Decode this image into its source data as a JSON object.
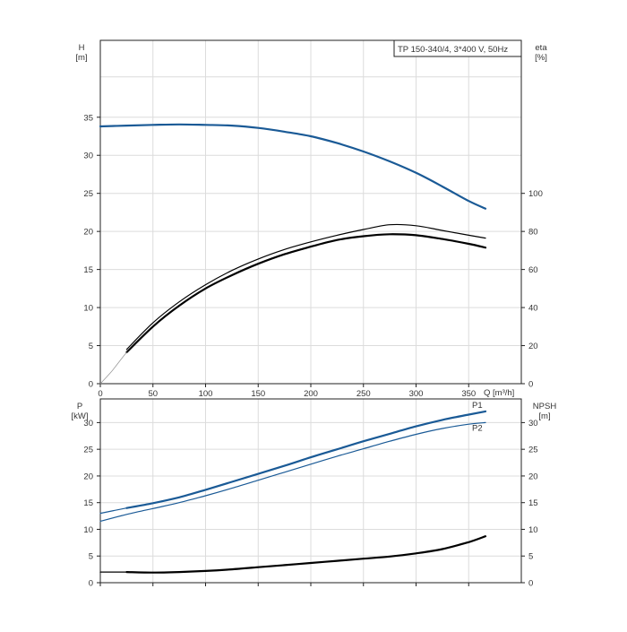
{
  "chart_data": [
    {
      "type": "line",
      "panel": "head-efficiency",
      "title": "TP 150-340/4, 3*400 V, 50Hz",
      "xlabel": "Q [m³/h]",
      "ylabel": "H\n[m]",
      "y2label": "eta\n[%]",
      "xlim": [
        0,
        400
      ],
      "ylim": [
        0,
        40
      ],
      "y2lim": [
        0,
        160
      ],
      "x_ticks": [
        "0",
        "50",
        "100",
        "150",
        "200",
        "250",
        "300",
        "350"
      ],
      "y_ticks": [
        "0",
        "5",
        "10",
        "15",
        "20",
        "25",
        "30",
        "35"
      ],
      "y2_ticks": [
        "0",
        "20",
        "40",
        "60",
        "80",
        "100"
      ],
      "grid": true,
      "series": [
        {
          "key": "H",
          "axis": "left",
          "color": "#1a5a96",
          "width": 2.2,
          "x": [
            0,
            25,
            50,
            75,
            100,
            125,
            150,
            175,
            200,
            225,
            250,
            275,
            300,
            325,
            350,
            366
          ],
          "y": [
            33.8,
            33.9,
            34.0,
            34.05,
            34.0,
            33.9,
            33.6,
            33.1,
            32.5,
            31.6,
            30.5,
            29.2,
            27.7,
            25.9,
            24.0,
            23.0
          ]
        },
        {
          "key": "eta_thin",
          "axis": "right",
          "color": "#000000",
          "width": 1.2,
          "x": [
            25,
            50,
            75,
            100,
            125,
            150,
            175,
            200,
            225,
            250,
            275,
            300,
            325,
            350,
            366
          ],
          "y": [
            18,
            32,
            43,
            52,
            59.5,
            65.5,
            70.5,
            74.5,
            78,
            81,
            83.5,
            83,
            80.5,
            78,
            76.5
          ]
        },
        {
          "key": "eta_thick",
          "axis": "right",
          "color": "#000000",
          "width": 2.2,
          "x": [
            25,
            50,
            75,
            100,
            125,
            150,
            175,
            200,
            225,
            250,
            275,
            300,
            325,
            350,
            366
          ],
          "y": [
            16.5,
            30,
            41,
            50,
            57,
            63,
            68,
            72,
            75.5,
            77.5,
            78.5,
            78,
            76,
            73.5,
            71.5
          ]
        },
        {
          "key": "eta_ext",
          "axis": "right",
          "color": "#999999",
          "width": 0.8,
          "x": [
            0,
            10,
            20,
            25
          ],
          "y": [
            0,
            6,
            13,
            16.5
          ]
        }
      ]
    },
    {
      "type": "line",
      "panel": "power-npsh",
      "ylabel": "P\n[kW]",
      "y2label": "NPSH\n[m]",
      "xlim": [
        0,
        400
      ],
      "ylim": [
        0,
        40
      ],
      "y2lim": [
        0,
        40
      ],
      "y_ticks": [
        "0",
        "5",
        "10",
        "15",
        "20",
        "25",
        "30"
      ],
      "y2_ticks": [
        "0",
        "5",
        "10",
        "15",
        "20",
        "25",
        "30"
      ],
      "grid": true,
      "series": [
        {
          "key": "P1",
          "name": "P1",
          "axis": "left",
          "color": "#1a5a96",
          "width": 2.2,
          "x": [
            25,
            50,
            75,
            100,
            125,
            150,
            175,
            200,
            225,
            250,
            275,
            300,
            325,
            350,
            366
          ],
          "y": [
            14.0,
            14.9,
            16.0,
            17.4,
            18.9,
            20.4,
            21.9,
            23.5,
            25.0,
            26.5,
            27.9,
            29.3,
            30.5,
            31.5,
            32.1
          ]
        },
        {
          "key": "P1_ext",
          "axis": "left",
          "color": "#1a5a96",
          "width": 1.2,
          "x": [
            0,
            25
          ],
          "y": [
            13.0,
            14.0
          ]
        },
        {
          "key": "P2",
          "name": "P2",
          "axis": "left",
          "color": "#1a5a96",
          "width": 1.2,
          "x": [
            0,
            25,
            50,
            75,
            100,
            125,
            150,
            175,
            200,
            225,
            250,
            275,
            300,
            325,
            350,
            366
          ],
          "y": [
            11.5,
            12.8,
            13.9,
            15.0,
            16.3,
            17.7,
            19.2,
            20.7,
            22.2,
            23.7,
            25.1,
            26.5,
            27.8,
            28.9,
            29.7,
            30.0
          ]
        },
        {
          "key": "NPSH",
          "axis": "right",
          "color": "#000000",
          "width": 2.2,
          "x": [
            25,
            50,
            75,
            100,
            125,
            150,
            175,
            200,
            225,
            250,
            275,
            300,
            325,
            350,
            366
          ],
          "y": [
            2.0,
            1.9,
            2.0,
            2.2,
            2.5,
            2.9,
            3.3,
            3.7,
            4.1,
            4.5,
            4.9,
            5.5,
            6.3,
            7.6,
            8.7
          ]
        },
        {
          "key": "NPSH_ext",
          "axis": "right",
          "color": "#000000",
          "width": 1.2,
          "x": [
            0,
            25
          ],
          "y": [
            2.0,
            2.0
          ]
        }
      ]
    }
  ]
}
